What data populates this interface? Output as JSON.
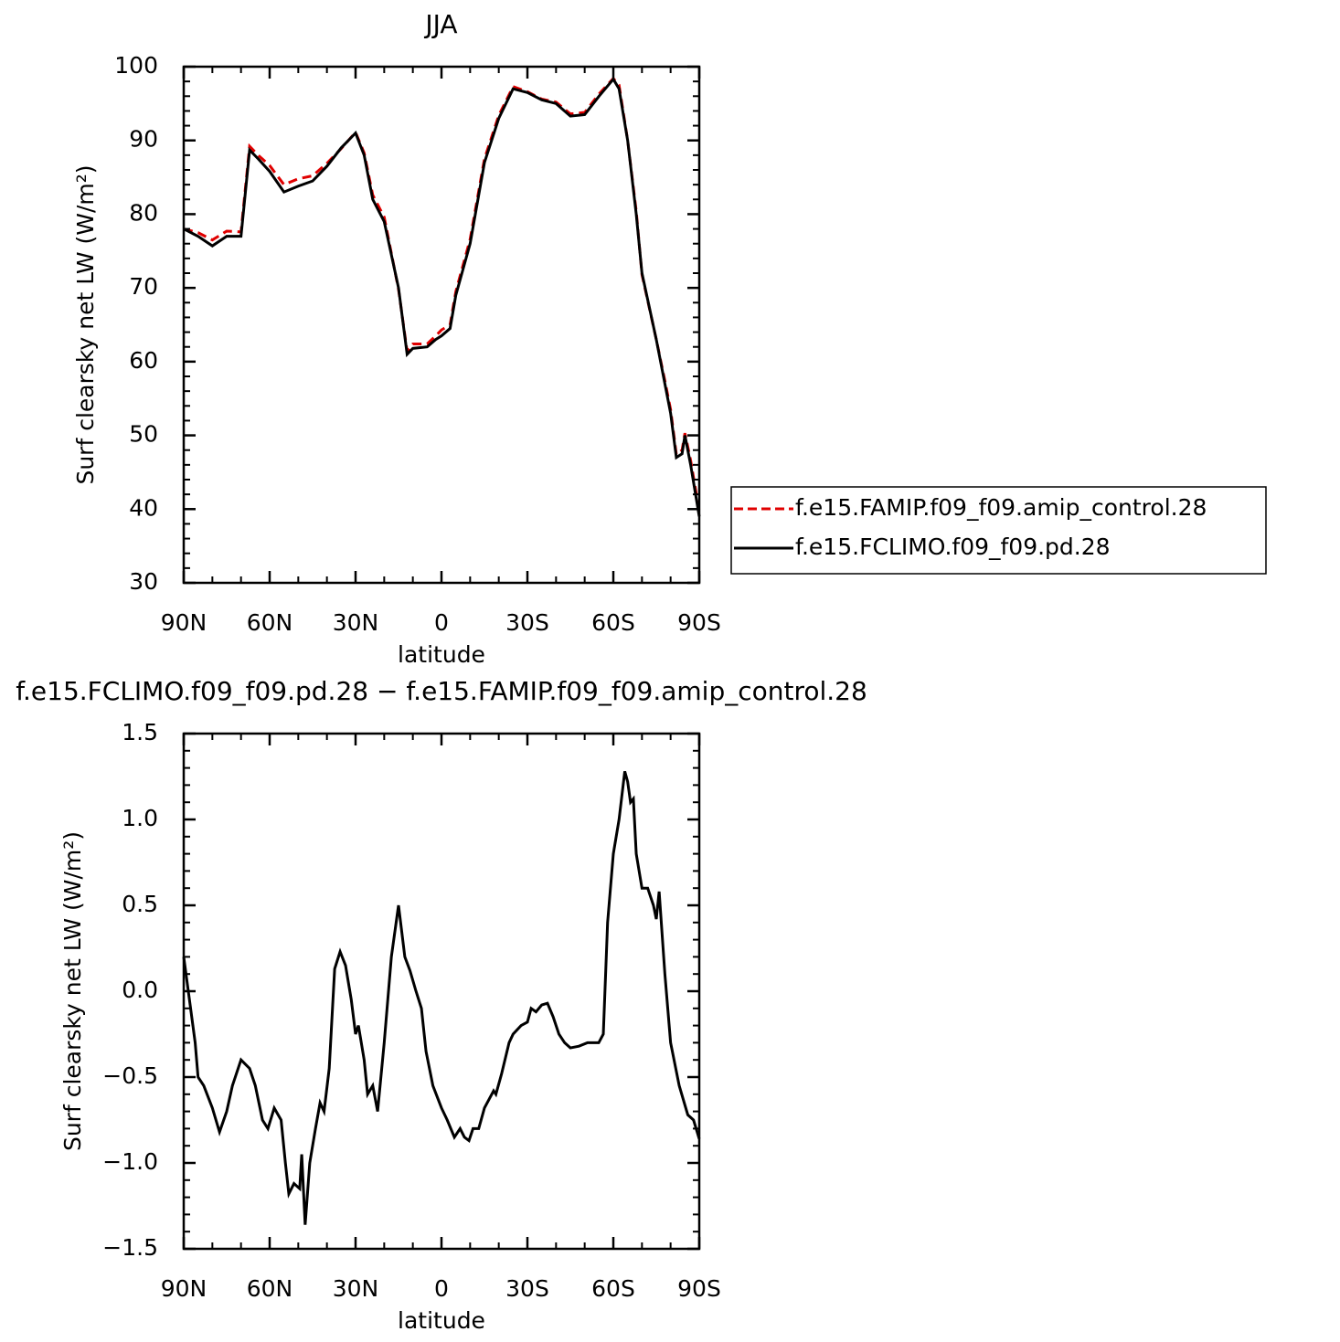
{
  "chart_data": [
    {
      "type": "line",
      "title": "JJA",
      "xlabel": "latitude",
      "ylabel": "Surf clearsky net LW (W/m²)",
      "xlim": [
        90,
        -90
      ],
      "xticks": [
        {
          "value": 90,
          "label": "90N"
        },
        {
          "value": 60,
          "label": "60N"
        },
        {
          "value": 30,
          "label": "30N"
        },
        0,
        {
          "value": -30,
          "label": "30S"
        },
        {
          "value": -60,
          "label": "60S"
        },
        {
          "value": -90,
          "label": "90S"
        }
      ],
      "ylim": [
        30,
        100
      ],
      "yticks": [
        30,
        40,
        50,
        60,
        70,
        80,
        90,
        100
      ],
      "legend": "right-outside",
      "x": [
        90,
        85,
        80,
        75,
        70,
        67,
        64,
        60,
        55,
        50,
        45,
        40,
        35,
        30,
        27,
        24,
        20,
        15,
        12,
        10,
        5,
        2,
        0,
        -3,
        -5,
        -10,
        -15,
        -20,
        -25,
        -30,
        -35,
        -40,
        -45,
        -50,
        -55,
        -60,
        -62,
        -65,
        -68,
        -70,
        -75,
        -78,
        -80,
        -82,
        -84,
        -85,
        -87,
        -90
      ],
      "series": [
        {
          "name": "f.e15.FAMIP.f09_f09.amip_control.28",
          "color": "#e00000",
          "line_style": "dashed",
          "values": [
            78,
            77.5,
            76.5,
            77.7,
            77.6,
            89.2,
            88,
            86.6,
            84,
            84.8,
            85.2,
            86.9,
            88.9,
            91.1,
            88.3,
            82.6,
            79.6,
            69.8,
            61.4,
            62.4,
            62.4,
            63.5,
            64.3,
            65,
            69.5,
            76.6,
            87.5,
            93.4,
            97.3,
            96.6,
            95.6,
            95.2,
            93.6,
            93.8,
            96.3,
            98.4,
            97.5,
            90,
            80.4,
            71.8,
            63,
            57.4,
            53.5,
            47.4,
            48,
            50.3,
            46.6,
            39.7
          ]
        },
        {
          "name": "f.e15.FCLIMO.f09_f09.pd.28",
          "color": "#000000",
          "line_style": "solid",
          "values": [
            78,
            77,
            75.7,
            77,
            77,
            88.7,
            87.5,
            85.8,
            83,
            83.8,
            84.5,
            86.5,
            89,
            91,
            88,
            82,
            79,
            70,
            61,
            61.8,
            62,
            63,
            63.5,
            64.5,
            69,
            76,
            87,
            93,
            97,
            96.5,
            95.5,
            95,
            93.3,
            93.5,
            96,
            98.3,
            97,
            90,
            80,
            72,
            63,
            57,
            53,
            47,
            47.5,
            50,
            46,
            39
          ]
        }
      ]
    },
    {
      "type": "line",
      "title": "f.e15.FCLIMO.f09_f09.pd.28 − f.e15.FAMIP.f09_f09.amip_control.28",
      "xlabel": "latitude",
      "ylabel": "Surf clearsky net LW (W/m²)",
      "xlim": [
        90,
        -90
      ],
      "xticks": [
        {
          "value": 90,
          "label": "90N"
        },
        {
          "value": 60,
          "label": "60N"
        },
        {
          "value": 30,
          "label": "30N"
        },
        0,
        {
          "value": -30,
          "label": "30S"
        },
        {
          "value": -60,
          "label": "60S"
        },
        {
          "value": -90,
          "label": "90S"
        }
      ],
      "ylim": [
        -1.5,
        1.5
      ],
      "yticks": [
        {
          "value": -1.5,
          "label": "−1.5"
        },
        {
          "value": -1.0,
          "label": "−1.0"
        },
        {
          "value": -0.5,
          "label": "−0.5"
        },
        {
          "value": 0,
          "label": "0.0"
        },
        0.5,
        {
          "value": 1.0,
          "label": "1.0"
        },
        1.5
      ],
      "x": [
        90,
        88,
        86,
        85,
        83,
        80,
        77.5,
        75,
        73,
        70,
        67,
        65,
        62.5,
        60.6,
        58.4,
        56,
        54.5,
        53.3,
        51.5,
        49.5,
        48.8,
        47.6,
        46,
        44,
        42.4,
        41,
        39.2,
        37.3,
        35.4,
        33.5,
        31.5,
        30,
        29,
        27,
        25.8,
        24,
        22.3,
        20,
        17.5,
        15,
        12.8,
        11,
        8.9,
        7,
        5.4,
        3,
        0,
        -2,
        -4.5,
        -6.5,
        -8,
        -9.6,
        -11,
        -13,
        -15,
        -18.2,
        -19,
        -21,
        -23.6,
        -25,
        -27.8,
        -30,
        -31.3,
        -33,
        -35,
        -37,
        -39,
        -41,
        -43,
        -45,
        -48,
        -51,
        -54.9,
        -56.5,
        -58,
        -60,
        -62,
        -64,
        -65,
        -66,
        -67,
        -68,
        -70,
        -72,
        -74,
        -75,
        -76,
        -78,
        -80,
        -83,
        -86,
        -88,
        -90
      ],
      "series": [
        {
          "color": "#000000",
          "line_style": "solid",
          "values": [
            0.2,
            -0.05,
            -0.3,
            -0.5,
            -0.55,
            -0.68,
            -0.82,
            -0.7,
            -0.55,
            -0.4,
            -0.45,
            -0.55,
            -0.75,
            -0.8,
            -0.68,
            -0.75,
            -1.0,
            -1.18,
            -1.12,
            -1.15,
            -0.95,
            -1.36,
            -1.0,
            -0.8,
            -0.65,
            -0.7,
            -0.45,
            0.13,
            0.23,
            0.15,
            -0.05,
            -0.25,
            -0.2,
            -0.4,
            -0.6,
            -0.55,
            -0.7,
            -0.3,
            0.2,
            0.5,
            0.2,
            0.12,
            0.0,
            -0.1,
            -0.35,
            -0.55,
            -0.68,
            -0.75,
            -0.85,
            -0.8,
            -0.85,
            -0.87,
            -0.8,
            -0.8,
            -0.68,
            -0.58,
            -0.6,
            -0.48,
            -0.3,
            -0.25,
            -0.2,
            -0.18,
            -0.1,
            -0.12,
            -0.08,
            -0.07,
            -0.15,
            -0.25,
            -0.3,
            -0.33,
            -0.32,
            -0.3,
            -0.3,
            -0.25,
            0.4,
            0.8,
            1.0,
            1.28,
            1.22,
            1.1,
            1.12,
            0.8,
            0.6,
            0.6,
            0.5,
            0.42,
            0.58,
            0.1,
            -0.3,
            -0.55,
            -0.72,
            -0.75,
            -0.86
          ]
        }
      ]
    }
  ]
}
